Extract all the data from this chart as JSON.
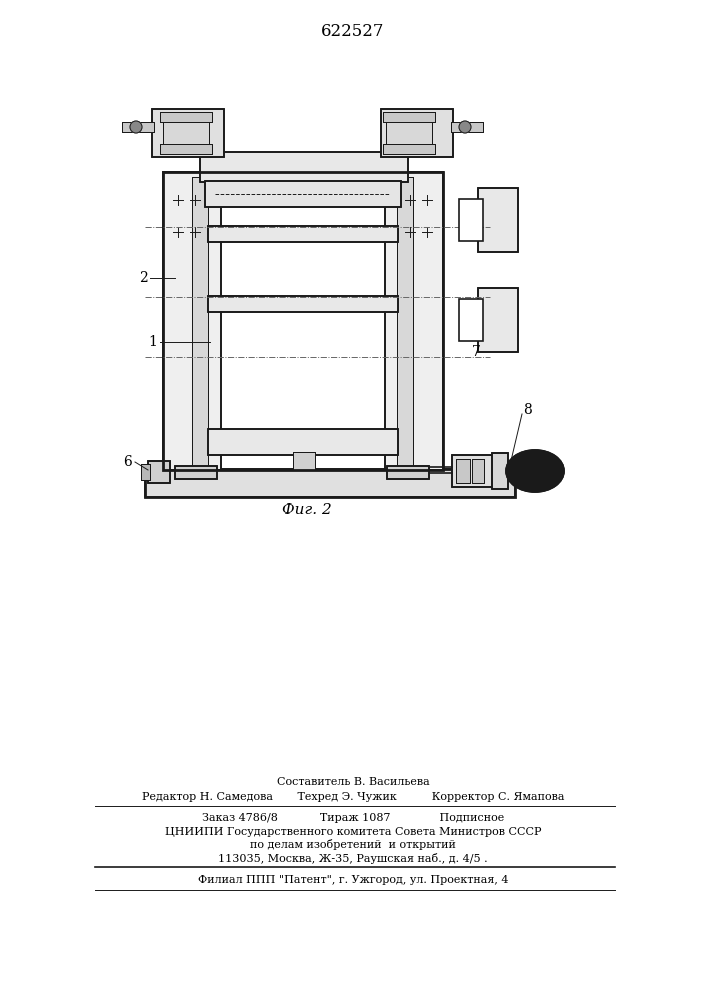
{
  "title": "622527",
  "fig_caption": "Фиг. 2",
  "bg_color": "#ffffff",
  "line_color": "#1a1a1a",
  "label_color": "#000000",
  "footer_lines": [
    "Составитель В. Васильева",
    "Редактор Н. Самедова       Техред Э. Чужик          Корректор С. Ямапова",
    "Заказ 4786/8            Тираж 1087              Подписное",
    "ЦНИИПИ Государственного комитета Совета Министров СССР",
    "по делам изобретений  и открытий",
    "113035, Москва, Ж-35, Раушская наб., д. 4/5 .",
    "Филиал ППП \"Патент\", г. Ужгород, ул. Проектная, 4"
  ]
}
